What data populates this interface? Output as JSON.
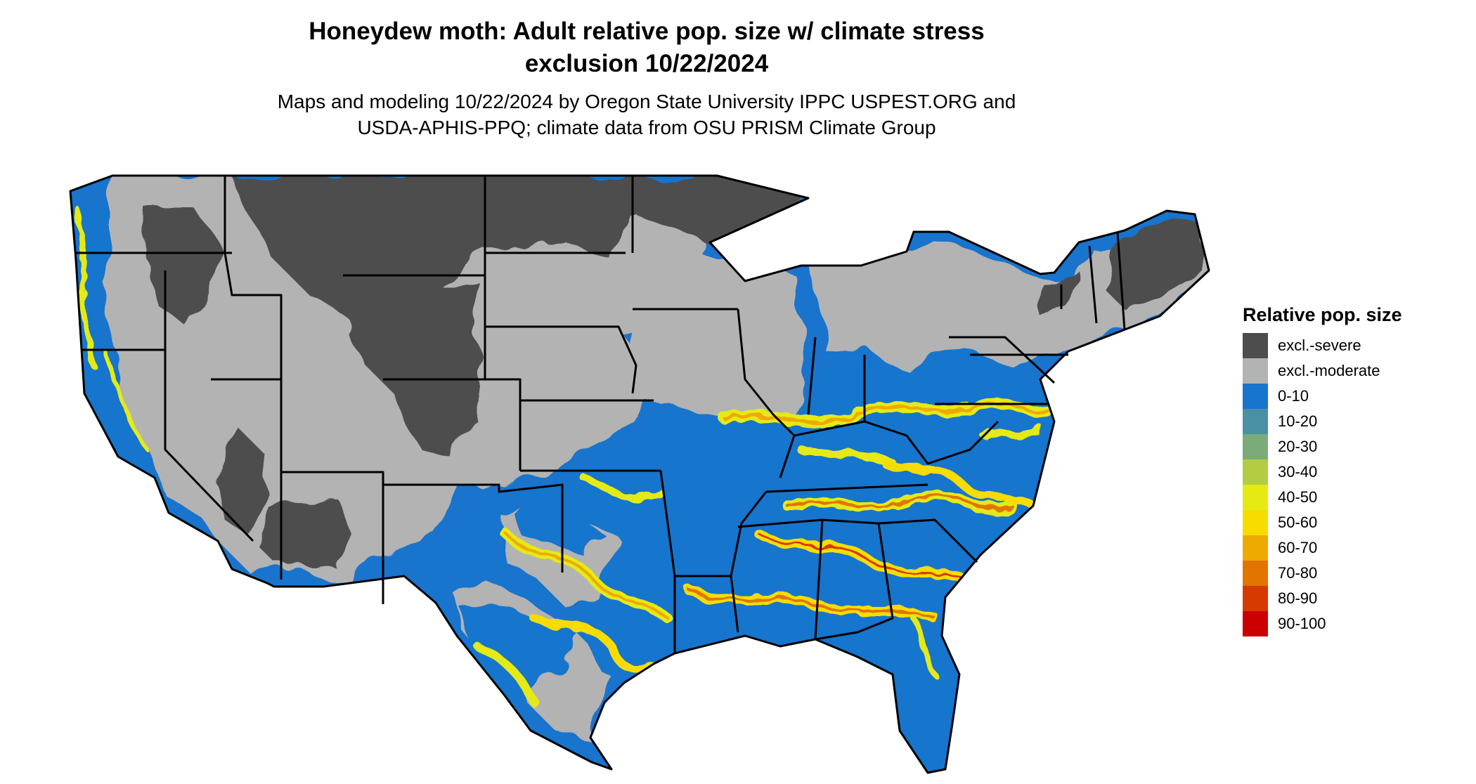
{
  "title_line1": "Honeydew moth: Adult relative pop. size w/ climate stress",
  "title_line2": "exclusion 10/22/2024",
  "subtitle_line1": "Maps and modeling 10/22/2024 by Oregon State University IPPC USPEST.ORG and",
  "subtitle_line2": "USDA-APHIS-PPQ; climate data from OSU PRISM Climate Group",
  "legend": {
    "title": "Relative pop. size",
    "items": [
      {
        "label": "excl.-severe",
        "color": "#4d4d4d"
      },
      {
        "label": "excl.-moderate",
        "color": "#b3b3b3"
      },
      {
        "label": "0-10",
        "color": "#1874cd"
      },
      {
        "label": "10-20",
        "color": "#4a90a4"
      },
      {
        "label": "20-30",
        "color": "#7cab7a"
      },
      {
        "label": "30-40",
        "color": "#b2cd43"
      },
      {
        "label": "40-50",
        "color": "#e5ea13"
      },
      {
        "label": "50-60",
        "color": "#f8dc00"
      },
      {
        "label": "60-70",
        "color": "#eeaa00"
      },
      {
        "label": "70-80",
        "color": "#e27400"
      },
      {
        "label": "80-90",
        "color": "#d63a00"
      },
      {
        "label": "90-100",
        "color": "#cc0000"
      }
    ]
  }
}
